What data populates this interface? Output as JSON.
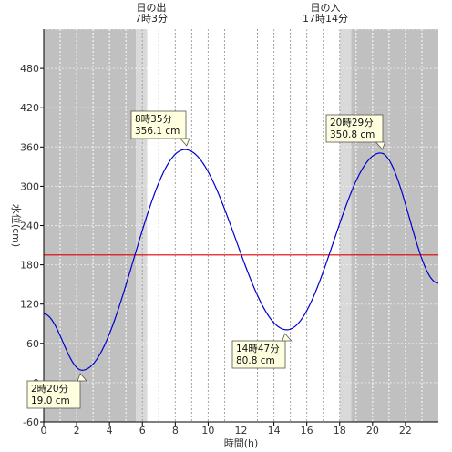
{
  "chart_data": {
    "type": "line",
    "xlabel": "時間(h)",
    "ylabel": "水位(cm)",
    "xlim": [
      0,
      24
    ],
    "ylim": [
      -60,
      540
    ],
    "x_ticks": [
      0,
      2,
      4,
      6,
      8,
      10,
      12,
      14,
      16,
      18,
      20,
      22
    ],
    "y_ticks": [
      -60,
      0,
      60,
      120,
      180,
      240,
      300,
      360,
      420,
      480
    ],
    "reference_line": {
      "y": 195,
      "color": "#e00000"
    },
    "line_color": "#0000cc",
    "colors": {
      "night": "#c0c0c0",
      "twilight": "#d9d9d9",
      "day": "#ffffff",
      "callout_bg": "#ffffe0"
    },
    "sun": [
      {
        "event": "日の出",
        "time": "7時3分",
        "hour": 7.05
      },
      {
        "event": "日の入",
        "time": "17時14分",
        "hour": 17.233
      }
    ],
    "twilight": [
      [
        5.6,
        6.3
      ],
      [
        18.0,
        18.7
      ]
    ],
    "series": [
      {
        "x": [
          0,
          2.333,
          8.583,
          14.783,
          20.483,
          24
        ],
        "y": [
          105,
          19.0,
          356.1,
          80.8,
          350.8,
          152
        ]
      }
    ],
    "annotations": [
      {
        "time": "2時20分",
        "level": "19.0 cm",
        "hour": 2.333,
        "value": 19.0
      },
      {
        "time": "8時35分",
        "level": "356.1 cm",
        "hour": 8.583,
        "value": 356.1
      },
      {
        "time": "14時47分",
        "level": "80.8 cm",
        "hour": 14.783,
        "value": 80.8
      },
      {
        "time": "20時29分",
        "level": "350.8 cm",
        "hour": 20.483,
        "value": 350.8
      }
    ]
  }
}
